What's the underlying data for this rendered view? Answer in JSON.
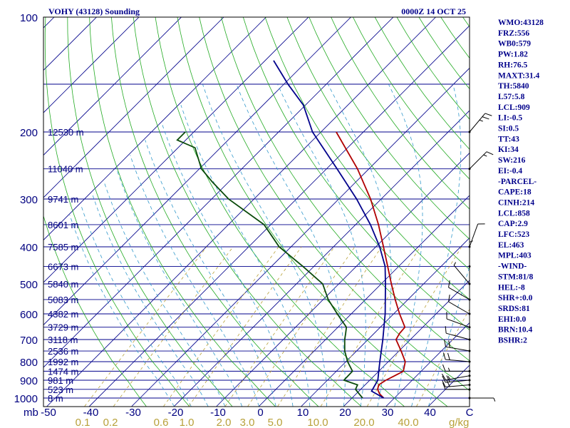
{
  "chart_data": {
    "type": "line",
    "title_left": "VOHY (43128) Sounding",
    "title_right": "0000Z 14 OCT 25",
    "corner_unit_label": "mb",
    "mix_unit_label": "g/kg",
    "pressure_ticks": [
      {
        "p": 100,
        "label": "100"
      },
      {
        "p": 200,
        "label": "200"
      },
      {
        "p": 300,
        "label": "300"
      },
      {
        "p": 400,
        "label": "400"
      },
      {
        "p": 500,
        "label": "500"
      },
      {
        "p": 600,
        "label": "600"
      },
      {
        "p": 700,
        "label": "700"
      },
      {
        "p": 800,
        "label": "800"
      },
      {
        "p": 900,
        "label": "900"
      },
      {
        "p": 1000,
        "label": "1000"
      }
    ],
    "height_levels": [
      {
        "p": 200,
        "label": "12530 m"
      },
      {
        "p": 250,
        "label": "11040 m"
      },
      {
        "p": 300,
        "label": "9741 m"
      },
      {
        "p": 350,
        "label": "8601 m"
      },
      {
        "p": 400,
        "label": "7585 m"
      },
      {
        "p": 450,
        "label": "6673 m"
      },
      {
        "p": 500,
        "label": "5840 m"
      },
      {
        "p": 550,
        "label": "5083 m"
      },
      {
        "p": 600,
        "label": "4382 m"
      },
      {
        "p": 650,
        "label": "3729 m"
      },
      {
        "p": 700,
        "label": "3118 m"
      },
      {
        "p": 750,
        "label": "2536 m"
      },
      {
        "p": 800,
        "label": "1992 m"
      },
      {
        "p": 850,
        "label": "1474 m"
      },
      {
        "p": 900,
        "label": "981 m"
      },
      {
        "p": 950,
        "label": "523 m"
      },
      {
        "p": 1000,
        "label": "8 m"
      }
    ],
    "temperature_ticks": [
      "-50",
      "-40",
      "-30",
      "-20",
      "-10",
      "0",
      "10",
      "20",
      "30",
      "40",
      "C"
    ],
    "mixing_ratio_ticks": [
      "0.1",
      "0.2",
      "0.6",
      "1.0",
      "2.0",
      "3.0",
      "5.0",
      "10.0",
      "20.0",
      "40.0"
    ],
    "series": [
      {
        "name": "temperature",
        "color": "#b00000",
        "points": [
          {
            "p": 1000,
            "t": 27.5
          },
          {
            "p": 975,
            "t": 25.5
          },
          {
            "p": 950,
            "t": 24.0
          },
          {
            "p": 925,
            "t": 23.2
          },
          {
            "p": 900,
            "t": 23.8
          },
          {
            "p": 875,
            "t": 24.8
          },
          {
            "p": 850,
            "t": 25.8
          },
          {
            "p": 800,
            "t": 24.0
          },
          {
            "p": 750,
            "t": 20.5
          },
          {
            "p": 700,
            "t": 16.6
          },
          {
            "p": 675,
            "t": 16.0
          },
          {
            "p": 650,
            "t": 15.8
          },
          {
            "p": 600,
            "t": 11.4
          },
          {
            "p": 550,
            "t": 7.0
          },
          {
            "p": 500,
            "t": 2.4
          },
          {
            "p": 450,
            "t": -2.6
          },
          {
            "p": 400,
            "t": -8.2
          },
          {
            "p": 350,
            "t": -14.6
          },
          {
            "p": 300,
            "t": -22.5
          },
          {
            "p": 250,
            "t": -32.7
          },
          {
            "p": 200,
            "t": -46.4
          }
        ]
      },
      {
        "name": "dewpoint",
        "color": "#0a4a0a",
        "points": [
          {
            "p": 1000,
            "t": 22.5
          },
          {
            "p": 950,
            "t": 18.8
          },
          {
            "p": 925,
            "t": 18.2
          },
          {
            "p": 900,
            "t": 13.9
          },
          {
            "p": 850,
            "t": 13.8
          },
          {
            "p": 800,
            "t": 10.4
          },
          {
            "p": 750,
            "t": 7.2
          },
          {
            "p": 700,
            "t": 4.5
          },
          {
            "p": 675,
            "t": 3.3
          },
          {
            "p": 650,
            "t": 2.0
          },
          {
            "p": 600,
            "t": -3.3
          },
          {
            "p": 550,
            "t": -8.8
          },
          {
            "p": 500,
            "t": -13.8
          },
          {
            "p": 450,
            "t": -22.6
          },
          {
            "p": 400,
            "t": -32.8
          },
          {
            "p": 350,
            "t": -41.6
          },
          {
            "p": 300,
            "t": -56.0
          },
          {
            "p": 270,
            "t": -64.0
          },
          {
            "p": 250,
            "t": -69.5
          },
          {
            "p": 220,
            "t": -76.0
          },
          {
            "p": 210,
            "t": -82.0
          },
          {
            "p": 200,
            "t": -82.0
          }
        ]
      },
      {
        "name": "parcel",
        "color": "#00008b",
        "points": [
          {
            "p": 1000,
            "t": 27.5
          },
          {
            "p": 960,
            "t": 23.0
          },
          {
            "p": 900,
            "t": 21.9
          },
          {
            "p": 850,
            "t": 20.0
          },
          {
            "p": 800,
            "t": 18.0
          },
          {
            "p": 700,
            "t": 13.5
          },
          {
            "p": 600,
            "t": 8.0
          },
          {
            "p": 500,
            "t": 1.0
          },
          {
            "p": 450,
            "t": -3.2
          },
          {
            "p": 400,
            "t": -9.1
          },
          {
            "p": 350,
            "t": -16.5
          },
          {
            "p": 300,
            "t": -25.8
          },
          {
            "p": 250,
            "t": -37.5
          },
          {
            "p": 200,
            "t": -52.0
          },
          {
            "p": 170,
            "t": -60.5
          },
          {
            "p": 150,
            "t": -69.0
          },
          {
            "p": 130,
            "t": -78.0
          }
        ]
      }
    ],
    "wind_barbs": [
      {
        "p": 1000,
        "dir": 90,
        "spd": 5
      },
      {
        "p": 950,
        "dir": 270,
        "spd": 10
      },
      {
        "p": 925,
        "dir": 265,
        "spd": 20
      },
      {
        "p": 900,
        "dir": 265,
        "spd": 20
      },
      {
        "p": 875,
        "dir": 260,
        "spd": 15
      },
      {
        "p": 850,
        "dir": 270,
        "spd": 15
      },
      {
        "p": 800,
        "dir": 275,
        "spd": 20
      },
      {
        "p": 750,
        "dir": 280,
        "spd": 20
      },
      {
        "p": 700,
        "dir": 285,
        "spd": 10
      },
      {
        "p": 650,
        "dir": 290,
        "spd": 10
      },
      {
        "p": 600,
        "dir": 300,
        "spd": 10
      },
      {
        "p": 550,
        "dir": 300,
        "spd": 10
      },
      {
        "p": 500,
        "dir": 320,
        "spd": 5
      },
      {
        "p": 450,
        "dir": 0,
        "spd": 5
      },
      {
        "p": 400,
        "dir": 20,
        "spd": 10
      },
      {
        "p": 250,
        "dir": 45,
        "spd": 15
      },
      {
        "p": 200,
        "dir": 40,
        "spd": 25
      }
    ],
    "indices": [
      "WMO:43128",
      "FRZ:556",
      "WB0:579",
      "PW:1.82",
      "RH:76.5",
      "MAXT:31.4",
      "TH:5840",
      "L57:5.8",
      "LCL:909",
      "LI:-0.5",
      "SI:0.5",
      "TT:43",
      "KI:34",
      "SW:216",
      "EI:-0.4",
      "-PARCEL-",
      "CAPE:18",
      "CINH:214",
      "LCL:858",
      "CAP:2.9",
      "LFC:523",
      "EL:463",
      "MPL:403",
      "-WIND-",
      "STM:81/8",
      "HEL:-8",
      "SHR+:0.0",
      "SRDS:81",
      "EHI:0.0",
      "BRN:10.4",
      "BSHR:2"
    ],
    "colors": {
      "frame": "#000000",
      "isobar": "#00008b",
      "isotherm": "#00008b",
      "dry_adiabat": "#22aa22",
      "moist_adiabat": "#3399cc",
      "mixing_ratio": "#b8a13a",
      "wind_staff": "#000000",
      "background": "#ffffff"
    }
  }
}
